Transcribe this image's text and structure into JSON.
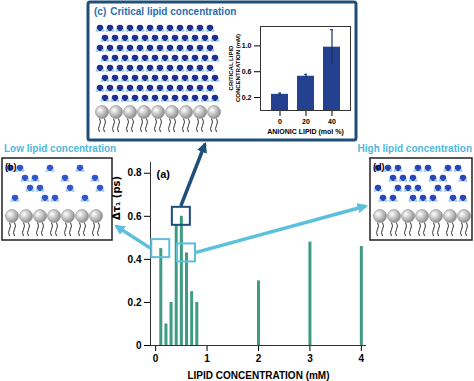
{
  "chart_data": [
    {
      "type": "bar",
      "annotations": [
        "(a)"
      ],
      "x_label": "LIPID CONCENTRATION (mM)",
      "y_label": "Δτ₁ (ps)",
      "x": [
        0.1,
        0.2,
        0.3,
        0.4,
        0.5,
        0.6,
        0.7,
        0.8,
        2,
        3,
        4
      ],
      "values": [
        0.45,
        0.1,
        0.2,
        0.56,
        0.6,
        0.43,
        0.25,
        0.2,
        0.3,
        0.48,
        0.46
      ],
      "color": "#3f9b82",
      "xlim": [
        -0.1,
        4.1
      ],
      "xticks": [
        0,
        1,
        2,
        3,
        4
      ],
      "ylim": [
        0,
        0.85
      ],
      "yticks": [
        0,
        0.2,
        0.4,
        0.6,
        0.8
      ]
    },
    {
      "type": "bar",
      "x_label": "ANIONIC LIPID (mol %)",
      "y_label": "CRITICAL LIPID CONCENTRATION (mM)",
      "categories": [
        "0",
        "20",
        "40"
      ],
      "values": [
        0.25,
        0.53,
        0.98
      ],
      "errors": [
        0.02,
        0.03,
        0.27
      ],
      "color": "#23418f",
      "ylim": [
        0,
        1.3
      ],
      "yticks": [
        0.2,
        0.6,
        {
          "value": 1,
          "label": "1.0"
        }
      ]
    }
  ],
  "panels": {
    "b": {
      "label": "(b)",
      "title": "Low lipid concentration"
    },
    "c": {
      "label": "(c)",
      "title": "Critical lipid concentration"
    },
    "d": {
      "label": "(d)",
      "title": "High lipid concentration"
    }
  }
}
